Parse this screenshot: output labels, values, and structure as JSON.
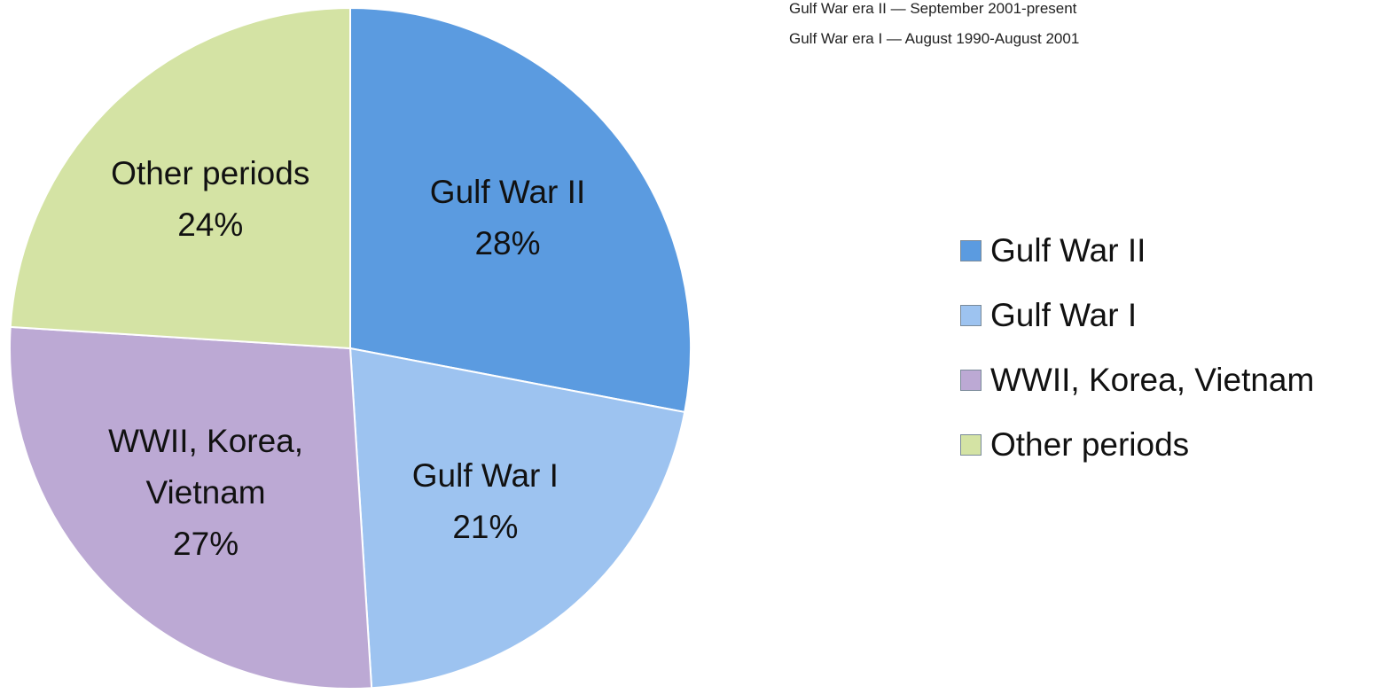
{
  "chart_data": {
    "type": "pie",
    "annotations": [
      "Gulf War era II — September 2001-present",
      "Gulf War era I — August 1990-August 2001"
    ],
    "categories": [
      "Gulf War II",
      "Gulf War I",
      "WWII, Korea, Vietnam",
      "Other periods"
    ],
    "values": [
      28,
      21,
      27,
      24
    ],
    "value_labels": [
      "28%",
      "21%",
      "27%",
      "24%"
    ],
    "colors": [
      "#5b9be0",
      "#9dc3f0",
      "#bca9d4",
      "#d4e3a4"
    ],
    "legend": "right"
  }
}
